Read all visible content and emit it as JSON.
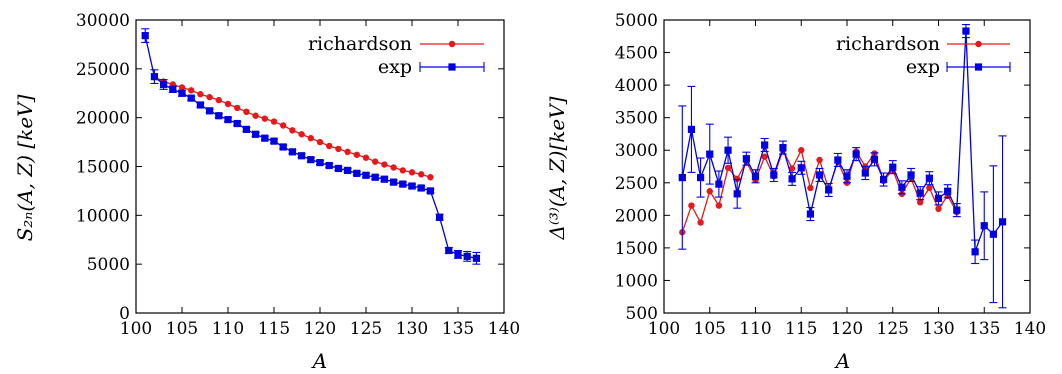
{
  "colors": {
    "richardson": "#e41a1c",
    "exp": "#0000e0",
    "axis": "#000000"
  },
  "chart_data": [
    {
      "type": "line",
      "xlabel": "A",
      "ylabel": "S₂ₙ(A, Z) [keV]",
      "xlim": [
        100,
        140
      ],
      "ylim": [
        0,
        30000
      ],
      "xticks": [
        100,
        105,
        110,
        115,
        120,
        125,
        130,
        135,
        140
      ],
      "yticks": [
        0,
        5000,
        10000,
        15000,
        20000,
        25000,
        30000
      ],
      "grid": false,
      "legend_position": "top-right",
      "series": [
        {
          "name": "richardson",
          "color": "#e41a1c",
          "marker": "circle",
          "x": [
            102,
            103,
            104,
            105,
            106,
            107,
            108,
            109,
            110,
            111,
            112,
            113,
            114,
            115,
            116,
            117,
            118,
            119,
            120,
            121,
            122,
            123,
            124,
            125,
            126,
            127,
            128,
            129,
            130,
            131,
            132
          ],
          "y": [
            24200,
            23700,
            23400,
            23100,
            22800,
            22400,
            22100,
            21800,
            21400,
            21000,
            20600,
            20200,
            19900,
            19600,
            19200,
            18700,
            18300,
            17900,
            17500,
            17100,
            16800,
            16500,
            16200,
            15900,
            15500,
            15200,
            14900,
            14600,
            14400,
            14200,
            13900
          ]
        },
        {
          "name": "exp",
          "color": "#0000e0",
          "marker": "square",
          "x": [
            101,
            102,
            103,
            104,
            105,
            106,
            107,
            108,
            109,
            110,
            111,
            112,
            113,
            114,
            115,
            116,
            117,
            118,
            119,
            120,
            121,
            122,
            123,
            124,
            125,
            126,
            127,
            128,
            129,
            130,
            131,
            132,
            133,
            134,
            135,
            136,
            137
          ],
          "y": [
            28400,
            24200,
            23400,
            22900,
            22500,
            22000,
            21300,
            20700,
            20200,
            19800,
            19400,
            18800,
            18300,
            17900,
            17600,
            17000,
            16500,
            16100,
            15700,
            15400,
            15100,
            14800,
            14600,
            14300,
            14100,
            13900,
            13700,
            13400,
            13200,
            13000,
            12800,
            12500,
            9800,
            6400,
            6000,
            5800,
            5600
          ],
          "err": [
            700,
            700,
            500,
            300,
            300,
            200,
            200,
            200,
            200,
            200,
            200,
            200,
            200,
            200,
            200,
            200,
            200,
            200,
            200,
            200,
            200,
            200,
            200,
            200,
            200,
            200,
            200,
            200,
            200,
            200,
            200,
            200,
            300,
            300,
            400,
            500,
            600
          ]
        }
      ]
    },
    {
      "type": "line",
      "xlabel": "A",
      "ylabel": "Δ⁽³⁾(A, Z)[keV]",
      "xlim": [
        100,
        140
      ],
      "ylim": [
        500,
        5000
      ],
      "xticks": [
        100,
        105,
        110,
        115,
        120,
        125,
        130,
        135,
        140
      ],
      "yticks": [
        500,
        1000,
        1500,
        2000,
        2500,
        3000,
        3500,
        4000,
        4500,
        5000
      ],
      "grid": false,
      "legend_position": "top-right",
      "series": [
        {
          "name": "richardson",
          "color": "#e41a1c",
          "marker": "circle",
          "x": [
            102,
            103,
            104,
            105,
            106,
            107,
            108,
            109,
            110,
            111,
            112,
            113,
            114,
            115,
            116,
            117,
            118,
            119,
            120,
            121,
            122,
            123,
            124,
            125,
            126,
            127,
            128,
            129,
            130,
            131,
            132
          ],
          "y": [
            1740,
            2150,
            1890,
            2370,
            2150,
            2730,
            2560,
            2830,
            2540,
            2900,
            2600,
            3000,
            2720,
            3000,
            2420,
            2850,
            2400,
            2830,
            2500,
            2980,
            2750,
            2950,
            2530,
            2700,
            2330,
            2570,
            2200,
            2420,
            2100,
            2300,
            2050
          ]
        },
        {
          "name": "exp",
          "color": "#0000e0",
          "marker": "square",
          "x": [
            102,
            103,
            104,
            105,
            106,
            107,
            108,
            109,
            110,
            111,
            112,
            113,
            114,
            115,
            116,
            117,
            118,
            119,
            120,
            121,
            122,
            123,
            124,
            125,
            126,
            127,
            128,
            129,
            130,
            131,
            132,
            133,
            134,
            135,
            136,
            137
          ],
          "y": [
            2580,
            3320,
            2580,
            2940,
            2480,
            3000,
            2330,
            2870,
            2600,
            3080,
            2620,
            3040,
            2560,
            2730,
            2020,
            2620,
            2390,
            2850,
            2600,
            2940,
            2650,
            2860,
            2550,
            2740,
            2430,
            2620,
            2340,
            2570,
            2260,
            2370,
            2080,
            4830,
            1440,
            1840,
            1710,
            1900
          ],
          "err": [
            1100,
            660,
            300,
            460,
            200,
            200,
            220,
            100,
            100,
            100,
            100,
            100,
            100,
            100,
            100,
            100,
            100,
            100,
            100,
            100,
            100,
            100,
            100,
            100,
            100,
            100,
            100,
            100,
            100,
            100,
            100,
            100,
            180,
            520,
            1050,
            1320
          ]
        }
      ]
    }
  ]
}
